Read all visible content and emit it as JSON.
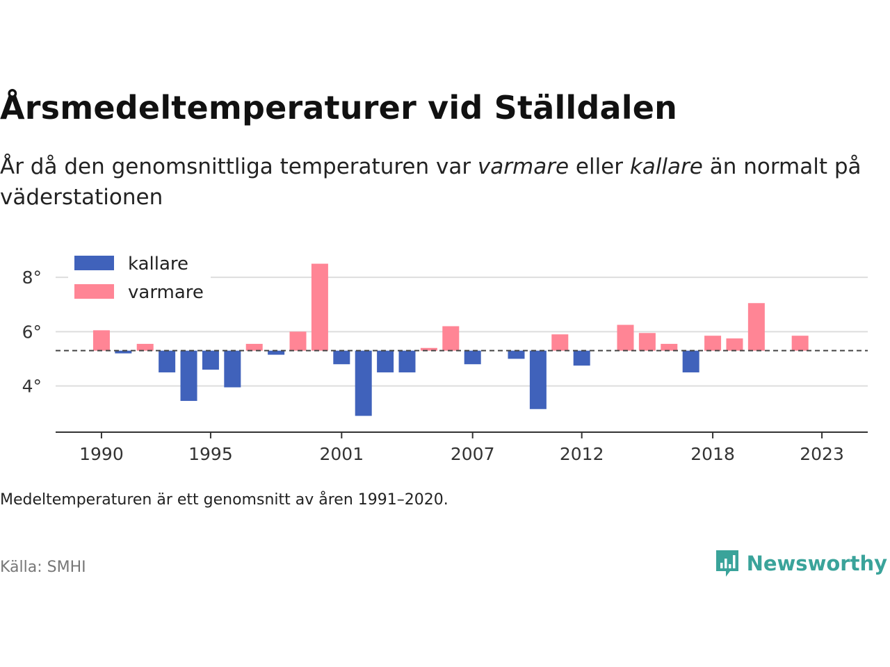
{
  "title": "Årsmedeltemperaturer vid Ställdalen",
  "subtitle": {
    "part1": "År då den genomsnittliga temperaturen var ",
    "em1": "varmare",
    "part2": " eller ",
    "em2": "kallare",
    "part3": " än normalt på väderstationen"
  },
  "note": "Medeltemperaturen är ett genomsnitt av åren 1991–2020.",
  "source": "Källa: SMHI",
  "brand": {
    "name": "Newsworthy",
    "icon": "newsworthy-logo-icon"
  },
  "colors": {
    "kallare": "#4062bb",
    "varmare": "#ff8595",
    "grid": "#dddddd",
    "axis": "#333333",
    "brand": "#3aa39a"
  },
  "chart_data": {
    "type": "bar",
    "baseline": 5.3,
    "ylim": [
      2.3,
      9.0
    ],
    "yticks": [
      4,
      6,
      8
    ],
    "ytick_labels": [
      "4°",
      "6°",
      "8°"
    ],
    "xlim": [
      1987.9,
      2025.1
    ],
    "xticks": [
      1990,
      1995,
      2001,
      2007,
      2012,
      2018,
      2023
    ],
    "xtick_labels": [
      "1990",
      "1995",
      "2001",
      "2007",
      "2012",
      "2018",
      "2023"
    ],
    "grid": true,
    "legend": {
      "position": "top-left",
      "items": [
        {
          "label": "kallare",
          "key": "kallare"
        },
        {
          "label": "varmare",
          "key": "varmare"
        }
      ]
    },
    "x": [
      1990,
      1991,
      1992,
      1993,
      1994,
      1995,
      1996,
      1997,
      1998,
      1999,
      2000,
      2001,
      2002,
      2003,
      2004,
      2005,
      2006,
      2007,
      2009,
      2010,
      2011,
      2012,
      2014,
      2015,
      2016,
      2017,
      2018,
      2019,
      2020,
      2022
    ],
    "values": [
      6.05,
      5.2,
      5.55,
      4.5,
      3.45,
      4.6,
      3.95,
      5.55,
      5.15,
      6.0,
      8.5,
      4.8,
      2.9,
      4.5,
      4.5,
      5.4,
      6.2,
      4.8,
      5.0,
      3.15,
      5.9,
      4.75,
      6.25,
      5.95,
      5.55,
      4.5,
      5.85,
      5.75,
      7.05,
      5.85
    ]
  }
}
